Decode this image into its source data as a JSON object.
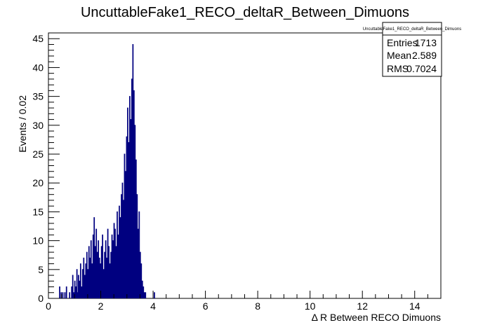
{
  "chart_data": {
    "type": "bar",
    "title": "UncuttableFake1_RECO_deltaR_Between_Dimuons",
    "xlabel": "Δ R Between RECO Dimuons",
    "ylabel": "Events / 0.02",
    "xlim": [
      0,
      15
    ],
    "ylim": [
      0,
      46
    ],
    "bin_width": 0.02,
    "xticks": [
      0,
      2,
      4,
      6,
      8,
      10,
      12,
      14
    ],
    "yticks": [
      0,
      5,
      10,
      15,
      20,
      25,
      30,
      35,
      40,
      45
    ],
    "x_tick_labels": [
      "0",
      "2",
      "4",
      "6",
      "8",
      "10",
      "12",
      "14"
    ],
    "y_tick_labels": [
      "0",
      "5",
      "10",
      "15",
      "20",
      "25",
      "30",
      "35",
      "40",
      "45"
    ],
    "grid": false,
    "legend": "none",
    "line_color": "#000080",
    "bins": [
      {
        "x": 0.42,
        "y": 2
      },
      {
        "x": 0.48,
        "y": 1
      },
      {
        "x": 0.54,
        "y": 1
      },
      {
        "x": 0.62,
        "y": 1
      },
      {
        "x": 0.68,
        "y": 2
      },
      {
        "x": 0.8,
        "y": 1
      },
      {
        "x": 0.88,
        "y": 2
      },
      {
        "x": 0.92,
        "y": 4
      },
      {
        "x": 0.96,
        "y": 1
      },
      {
        "x": 1.0,
        "y": 3
      },
      {
        "x": 1.04,
        "y": 2
      },
      {
        "x": 1.08,
        "y": 5
      },
      {
        "x": 1.1,
        "y": 1
      },
      {
        "x": 1.14,
        "y": 4
      },
      {
        "x": 1.18,
        "y": 3
      },
      {
        "x": 1.22,
        "y": 6
      },
      {
        "x": 1.26,
        "y": 2
      },
      {
        "x": 1.3,
        "y": 5
      },
      {
        "x": 1.34,
        "y": 7
      },
      {
        "x": 1.38,
        "y": 4
      },
      {
        "x": 1.42,
        "y": 6
      },
      {
        "x": 1.46,
        "y": 8
      },
      {
        "x": 1.5,
        "y": 5
      },
      {
        "x": 1.54,
        "y": 9
      },
      {
        "x": 1.58,
        "y": 7
      },
      {
        "x": 1.62,
        "y": 10
      },
      {
        "x": 1.66,
        "y": 6
      },
      {
        "x": 1.7,
        "y": 11
      },
      {
        "x": 1.74,
        "y": 14
      },
      {
        "x": 1.78,
        "y": 9
      },
      {
        "x": 1.82,
        "y": 12
      },
      {
        "x": 1.86,
        "y": 8
      },
      {
        "x": 1.9,
        "y": 10
      },
      {
        "x": 1.94,
        "y": 7
      },
      {
        "x": 1.98,
        "y": 6
      },
      {
        "x": 2.02,
        "y": 9
      },
      {
        "x": 2.06,
        "y": 11
      },
      {
        "x": 2.1,
        "y": 5
      },
      {
        "x": 2.14,
        "y": 8
      },
      {
        "x": 2.18,
        "y": 10
      },
      {
        "x": 2.22,
        "y": 7
      },
      {
        "x": 2.26,
        "y": 12
      },
      {
        "x": 2.3,
        "y": 9
      },
      {
        "x": 2.34,
        "y": 6
      },
      {
        "x": 2.38,
        "y": 8
      },
      {
        "x": 2.42,
        "y": 11
      },
      {
        "x": 2.46,
        "y": 10
      },
      {
        "x": 2.5,
        "y": 13
      },
      {
        "x": 2.54,
        "y": 12
      },
      {
        "x": 2.58,
        "y": 9
      },
      {
        "x": 2.62,
        "y": 15
      },
      {
        "x": 2.66,
        "y": 11
      },
      {
        "x": 2.7,
        "y": 16
      },
      {
        "x": 2.74,
        "y": 14
      },
      {
        "x": 2.78,
        "y": 18
      },
      {
        "x": 2.82,
        "y": 20
      },
      {
        "x": 2.86,
        "y": 17
      },
      {
        "x": 2.9,
        "y": 25
      },
      {
        "x": 2.94,
        "y": 22
      },
      {
        "x": 2.98,
        "y": 28
      },
      {
        "x": 3.02,
        "y": 33
      },
      {
        "x": 3.06,
        "y": 27
      },
      {
        "x": 3.1,
        "y": 35
      },
      {
        "x": 3.14,
        "y": 31
      },
      {
        "x": 3.18,
        "y": 38
      },
      {
        "x": 3.22,
        "y": 44
      },
      {
        "x": 3.26,
        "y": 36
      },
      {
        "x": 3.3,
        "y": 30
      },
      {
        "x": 3.34,
        "y": 24
      },
      {
        "x": 3.38,
        "y": 18
      },
      {
        "x": 3.42,
        "y": 12
      },
      {
        "x": 3.46,
        "y": 15
      },
      {
        "x": 3.5,
        "y": 8
      },
      {
        "x": 3.54,
        "y": 6
      },
      {
        "x": 3.58,
        "y": 3
      },
      {
        "x": 3.62,
        "y": 2
      },
      {
        "x": 3.66,
        "y": 1
      },
      {
        "x": 3.7,
        "y": 1
      },
      {
        "x": 4.04,
        "y": 1
      }
    ]
  },
  "stats_box": {
    "title": "UncuttableFake1_RECO_deltaR_Between_Dimuons",
    "entries_label": "Entries",
    "entries_value": "1713",
    "mean_label": "Mean",
    "mean_value": "2.589",
    "rms_label": "RMS",
    "rms_value": "0.7024"
  }
}
